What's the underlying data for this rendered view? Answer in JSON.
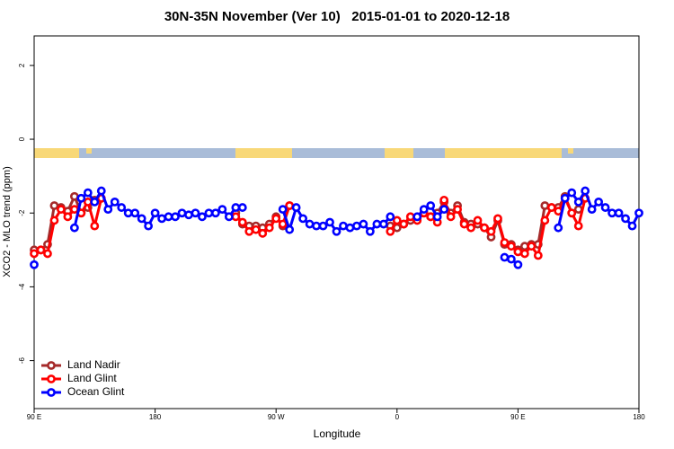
{
  "chart_data": {
    "type": "line",
    "title": "30N-35N November (Ver 10)   2015-01-01 to 2020-12-18",
    "xlabel": "Longitude",
    "ylabel": "XCO2 - MLO trend (ppm)",
    "xlim": [
      90,
      540
    ],
    "ylim": [
      -7.3,
      2.8
    ],
    "xticks": [
      {
        "value": 90,
        "label": "90 E"
      },
      180,
      {
        "value": 270,
        "label": "90 W"
      },
      {
        "value": 360,
        "label": "0"
      },
      {
        "value": 450,
        "label": "90 E"
      },
      {
        "value": 540,
        "label": "180"
      }
    ],
    "yticks": [
      2,
      0,
      -2,
      -4,
      -6
    ],
    "legend": "bottom-left",
    "x": [
      90,
      95,
      100,
      105,
      110,
      115,
      120,
      125,
      130,
      135,
      140,
      145,
      150,
      155,
      160,
      165,
      170,
      175,
      180,
      185,
      190,
      195,
      200,
      205,
      210,
      215,
      220,
      225,
      230,
      235,
      240,
      245,
      250,
      255,
      260,
      265,
      270,
      275,
      280,
      285,
      290,
      295,
      300,
      305,
      310,
      315,
      320,
      325,
      330,
      335,
      340,
      345,
      350,
      355,
      360,
      365,
      370,
      375,
      380,
      385,
      390,
      395,
      400,
      405,
      410,
      415,
      420,
      425,
      430,
      435,
      440,
      445,
      450,
      455,
      460,
      465,
      470,
      475,
      480,
      485,
      490,
      495,
      500,
      505,
      510,
      515,
      520,
      525,
      530,
      535,
      540
    ],
    "series": [
      {
        "name": "Land Nadir",
        "color": "#a52a2a",
        "values": [
          -3.0,
          -3.0,
          -2.85,
          -1.8,
          -1.85,
          -1.95,
          -1.55,
          -2.0,
          -1.85,
          -1.65,
          null,
          null,
          null,
          null,
          null,
          null,
          null,
          null,
          null,
          null,
          null,
          null,
          null,
          null,
          null,
          null,
          null,
          null,
          null,
          null,
          -2.0,
          -2.3,
          -2.35,
          -2.35,
          -2.4,
          -2.3,
          -2.1,
          -2.35,
          -1.8,
          null,
          null,
          null,
          null,
          null,
          null,
          null,
          null,
          null,
          null,
          null,
          null,
          null,
          null,
          -2.35,
          -2.4,
          -2.3,
          -2.2,
          -2.15,
          -2.0,
          -2.1,
          -2.0,
          -1.7,
          -2.0,
          -1.8,
          -2.25,
          -2.3,
          -2.3,
          -2.4,
          -2.65,
          -2.2,
          -2.85,
          -2.85,
          -3.0,
          -2.9,
          -2.85,
          -2.85,
          -1.8,
          -1.85,
          -1.85,
          -1.55,
          -2.0,
          -1.9,
          null,
          null,
          null,
          null,
          null,
          null,
          null,
          null,
          null
        ]
      },
      {
        "name": "Land Glint",
        "color": "#ff0000",
        "values": [
          -3.1,
          -3.0,
          -3.1,
          -2.2,
          -1.9,
          -2.1,
          -1.9,
          -2.0,
          -1.7,
          -2.35,
          -1.6,
          null,
          null,
          null,
          null,
          null,
          null,
          null,
          null,
          null,
          null,
          null,
          null,
          null,
          null,
          null,
          null,
          null,
          null,
          null,
          -2.1,
          -2.25,
          -2.5,
          -2.45,
          -2.55,
          -2.4,
          -2.15,
          -2.3,
          -1.8,
          null,
          null,
          null,
          null,
          null,
          null,
          null,
          null,
          null,
          null,
          null,
          null,
          null,
          null,
          -2.5,
          -2.2,
          -2.3,
          -2.1,
          -2.2,
          -2.0,
          -2.1,
          -2.25,
          -1.65,
          -2.1,
          -1.9,
          -2.3,
          -2.4,
          -2.2,
          -2.4,
          -2.5,
          -2.15,
          -2.8,
          -2.9,
          -3.05,
          -3.1,
          -2.9,
          -3.15,
          -2.2,
          -1.85,
          -1.95,
          -1.6,
          -2.0,
          -2.35,
          -1.6,
          null,
          null,
          null,
          null,
          null,
          null,
          null,
          null
        ]
      },
      {
        "name": "Ocean Glint",
        "color": "#0000ff",
        "values": [
          -3.4,
          null,
          null,
          null,
          null,
          null,
          -2.4,
          -1.6,
          -1.45,
          -1.7,
          -1.4,
          -1.9,
          -1.7,
          -1.85,
          -2.0,
          -2.0,
          -2.15,
          -2.35,
          -2.0,
          -2.15,
          -2.1,
          -2.1,
          -2.0,
          -2.05,
          -2.0,
          -2.1,
          -2.0,
          -2.0,
          -1.9,
          -2.1,
          -1.85,
          -1.85,
          null,
          null,
          null,
          null,
          null,
          -1.9,
          -2.45,
          -1.85,
          -2.15,
          -2.3,
          -2.35,
          -2.35,
          -2.25,
          -2.5,
          -2.35,
          -2.4,
          -2.35,
          -2.3,
          -2.5,
          -2.3,
          -2.3,
          -2.1,
          null,
          null,
          null,
          -2.1,
          -1.9,
          -1.8,
          -2.1,
          -1.9,
          null,
          null,
          null,
          null,
          null,
          null,
          null,
          null,
          -3.2,
          -3.25,
          -3.4,
          null,
          null,
          null,
          null,
          null,
          -2.4,
          -1.6,
          -1.45,
          -1.7,
          -1.4,
          -1.9,
          -1.7,
          -1.85,
          -2.0,
          -2.0,
          -2.15,
          -2.35,
          -2.0
        ]
      }
    ]
  }
}
